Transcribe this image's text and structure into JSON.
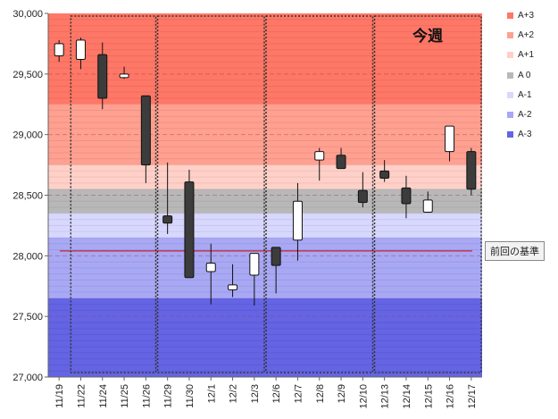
{
  "chart_data": {
    "type": "candlestick",
    "title": "",
    "xlabel": "",
    "ylabel": "",
    "ylim": [
      27000,
      30000
    ],
    "yticks": [
      27000,
      27500,
      28000,
      28500,
      29000,
      29500,
      30000
    ],
    "ytick_labels": [
      "27,000",
      "27,500",
      "28,000",
      "28,500",
      "29,000",
      "29,500",
      "30,000"
    ],
    "categories": [
      "11/19",
      "11/22",
      "11/24",
      "11/25",
      "11/26",
      "11/29",
      "11/30",
      "12/1",
      "12/2",
      "12/3",
      "12/6",
      "12/7",
      "12/8",
      "12/9",
      "12/10",
      "12/13",
      "12/14",
      "12/15",
      "12/16",
      "12/17"
    ],
    "ohlc": [
      {
        "open": 29650,
        "high": 29780,
        "low": 29600,
        "close": 29750
      },
      {
        "open": 29620,
        "high": 29800,
        "low": 29540,
        "close": 29780
      },
      {
        "open": 29660,
        "high": 29760,
        "low": 29210,
        "close": 29300
      },
      {
        "open": 29470,
        "high": 29560,
        "low": 29460,
        "close": 29500
      },
      {
        "open": 29320,
        "high": 29320,
        "low": 28600,
        "close": 28750
      },
      {
        "open": 28330,
        "high": 28770,
        "low": 28180,
        "close": 28270
      },
      {
        "open": 28610,
        "high": 28710,
        "low": 27820,
        "close": 27820
      },
      {
        "open": 27870,
        "high": 28100,
        "low": 27600,
        "close": 27940
      },
      {
        "open": 27720,
        "high": 27930,
        "low": 27660,
        "close": 27760
      },
      {
        "open": 27840,
        "high": 28020,
        "low": 27590,
        "close": 28020
      },
      {
        "open": 28070,
        "high": 28070,
        "low": 27690,
        "close": 27920
      },
      {
        "open": 28130,
        "high": 28600,
        "low": 27960,
        "close": 28450
      },
      {
        "open": 28790,
        "high": 28890,
        "low": 28620,
        "close": 28860
      },
      {
        "open": 28830,
        "high": 28890,
        "low": 28720,
        "close": 28720
      },
      {
        "open": 28540,
        "high": 28690,
        "low": 28400,
        "close": 28440
      },
      {
        "open": 28700,
        "high": 28790,
        "low": 28610,
        "close": 28640
      },
      {
        "open": 28560,
        "high": 28660,
        "low": 28310,
        "close": 28430
      },
      {
        "open": 28360,
        "high": 28530,
        "low": 28360,
        "close": 28460
      },
      {
        "open": 28860,
        "high": 29070,
        "low": 28780,
        "close": 29070
      },
      {
        "open": 28860,
        "high": 28890,
        "low": 28500,
        "close": 28550
      }
    ],
    "zones": [
      {
        "name": "A+3",
        "from": 29250,
        "to": 30000,
        "color": "#ff7766"
      },
      {
        "name": "A+2",
        "from": 28750,
        "to": 29250,
        "color": "#ffa090"
      },
      {
        "name": "A+1",
        "from": 28550,
        "to": 28750,
        "color": "#ffd0c8"
      },
      {
        "name": "A 0",
        "from": 28350,
        "to": 28550,
        "color": "#b8b8b8"
      },
      {
        "name": "A-1",
        "from": 28150,
        "to": 28350,
        "color": "#d8d8ff"
      },
      {
        "name": "A-2",
        "from": 27650,
        "to": 28150,
        "color": "#a8a8f4"
      },
      {
        "name": "A-3",
        "from": 27000,
        "to": 27650,
        "color": "#6464e4"
      }
    ],
    "reference_line": {
      "value": 28040,
      "color": "#cc0000",
      "label": "前回の基準"
    },
    "week_groups": [
      [
        1,
        4
      ],
      [
        5,
        9
      ],
      [
        10,
        14
      ],
      [
        15,
        19
      ]
    ],
    "current_week_label": "今週",
    "legend": {
      "placement": "right",
      "entries": [
        "A+3",
        "A+2",
        "A+1",
        "A 0",
        "A-1",
        "A-2",
        "A-3"
      ]
    },
    "grid": true,
    "colors": {
      "up": "#ffffff",
      "down": "#3c3c3c",
      "outline": "#111111",
      "grid": "#b05050"
    }
  }
}
